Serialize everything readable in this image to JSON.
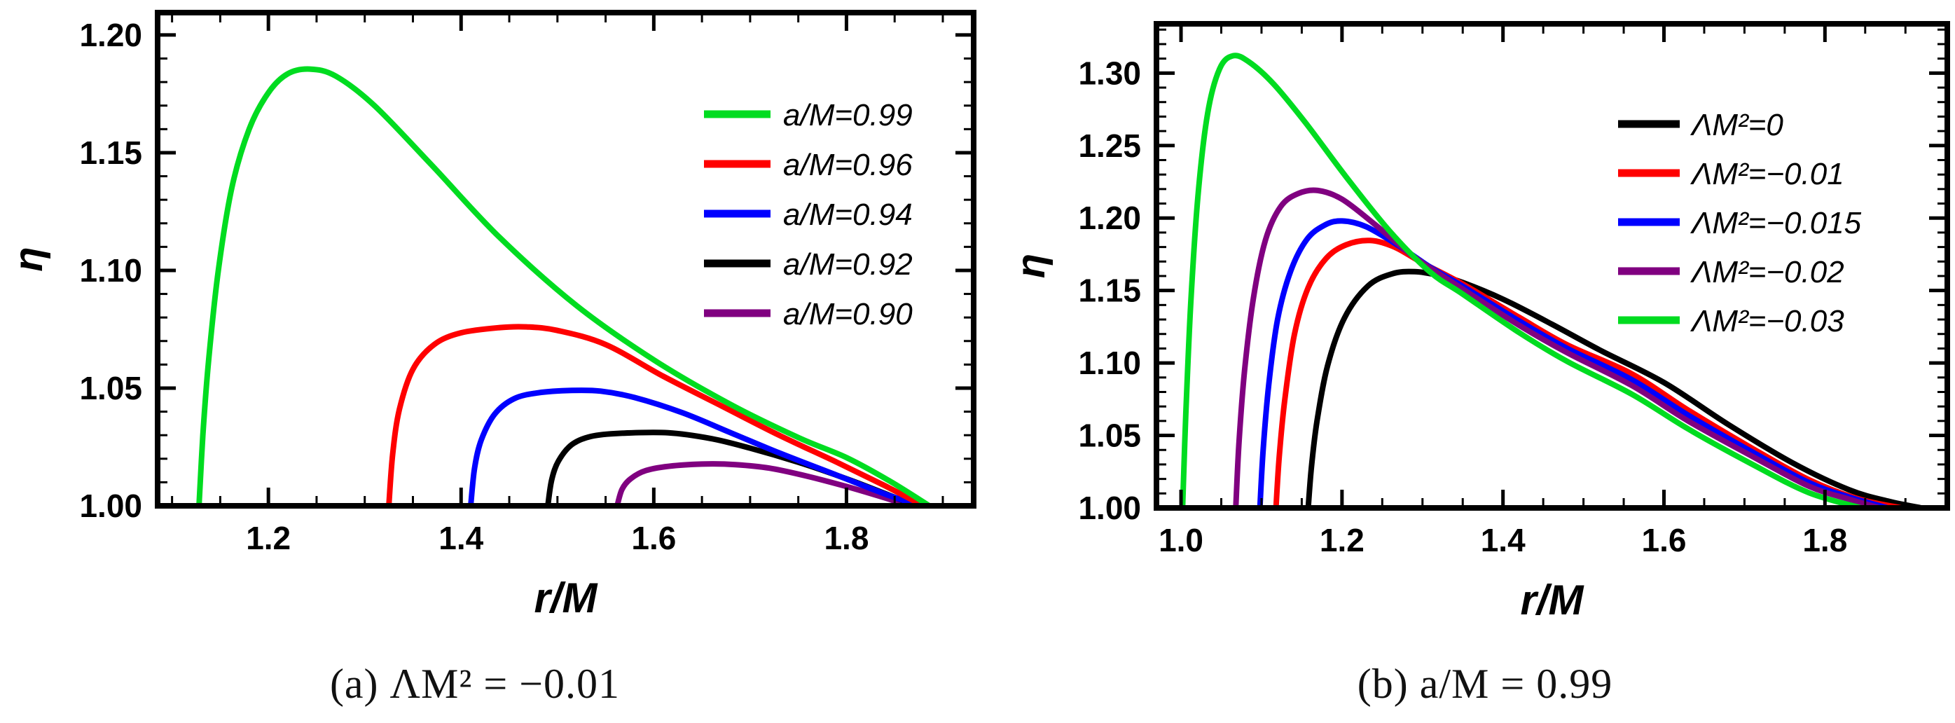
{
  "figure": {
    "background": "#ffffff",
    "accent_black": "#000000"
  },
  "chart_data": [
    {
      "type": "line",
      "panel": "a",
      "caption": "(a) ΛM² = −0.01",
      "xlabel": "r/M",
      "ylabel": "η",
      "xlim": [
        1.085,
        1.932
      ],
      "ylim": [
        1.0,
        1.2095
      ],
      "grid": false,
      "legend_position": "inside-right",
      "xticks": [
        {
          "v": 1.2,
          "label": "1.2"
        },
        {
          "v": 1.4,
          "label": "1.4"
        },
        {
          "v": 1.6,
          "label": "1.6"
        },
        {
          "v": 1.8,
          "label": "1.8"
        }
      ],
      "yticks": [
        {
          "v": 1.0,
          "label": "1.00"
        },
        {
          "v": 1.05,
          "label": "1.05"
        },
        {
          "v": 1.1,
          "label": "1.10"
        },
        {
          "v": 1.15,
          "label": "1.15"
        },
        {
          "v": 1.2,
          "label": "1.20"
        }
      ],
      "x_minor_step": 0.05,
      "y_minor_step": 0.01,
      "draw_order": [
        4,
        3,
        2,
        1,
        0
      ],
      "series": [
        {
          "name": "a/M=0.99",
          "color": "#00DC20",
          "peak": [
            1.24,
            1.185
          ],
          "points": [
            [
              1.128,
              1.0
            ],
            [
              1.132,
              1.03
            ],
            [
              1.138,
              1.062
            ],
            [
              1.148,
              1.1
            ],
            [
              1.162,
              1.135
            ],
            [
              1.18,
              1.16
            ],
            [
              1.2,
              1.1755
            ],
            [
              1.22,
              1.1835
            ],
            [
              1.243,
              1.1855
            ],
            [
              1.27,
              1.1825
            ],
            [
              1.31,
              1.17
            ],
            [
              1.37,
              1.1445
            ],
            [
              1.44,
              1.114
            ],
            [
              1.52,
              1.085
            ],
            [
              1.6,
              1.062
            ],
            [
              1.68,
              1.043
            ],
            [
              1.75,
              1.029
            ],
            [
              1.8,
              1.0205
            ],
            [
              1.845,
              1.0105
            ],
            [
              1.886,
              1.0
            ]
          ]
        },
        {
          "name": "a/M=0.96",
          "color": "#FF0000",
          "peak": [
            1.47,
            1.076
          ],
          "points": [
            [
              1.325,
              1.0
            ],
            [
              1.329,
              1.022
            ],
            [
              1.336,
              1.041
            ],
            [
              1.35,
              1.058
            ],
            [
              1.372,
              1.0685
            ],
            [
              1.4,
              1.0735
            ],
            [
              1.44,
              1.0757
            ],
            [
              1.468,
              1.076
            ],
            [
              1.5,
              1.0745
            ],
            [
              1.55,
              1.0685
            ],
            [
              1.61,
              1.055
            ],
            [
              1.67,
              1.0425
            ],
            [
              1.73,
              1.03
            ],
            [
              1.79,
              1.0185
            ],
            [
              1.84,
              1.0085
            ],
            [
              1.88,
              1.0
            ]
          ]
        },
        {
          "name": "a/M=0.94",
          "color": "#0000FF",
          "peak": [
            1.545,
            1.049
          ],
          "points": [
            [
              1.41,
              1.0
            ],
            [
              1.414,
              1.016
            ],
            [
              1.421,
              1.028
            ],
            [
              1.435,
              1.039
            ],
            [
              1.455,
              1.0455
            ],
            [
              1.48,
              1.048
            ],
            [
              1.515,
              1.049
            ],
            [
              1.545,
              1.0487
            ],
            [
              1.58,
              1.046
            ],
            [
              1.63,
              1.0395
            ],
            [
              1.68,
              1.031
            ],
            [
              1.73,
              1.0225
            ],
            [
              1.79,
              1.013
            ],
            [
              1.84,
              1.005
            ],
            [
              1.876,
              1.0
            ]
          ]
        },
        {
          "name": "a/M=0.92",
          "color": "#000000",
          "peak": [
            1.615,
            1.031
          ],
          "points": [
            [
              1.49,
              1.0
            ],
            [
              1.494,
              1.011
            ],
            [
              1.501,
              1.019
            ],
            [
              1.515,
              1.026
            ],
            [
              1.535,
              1.0295
            ],
            [
              1.565,
              1.0308
            ],
            [
              1.615,
              1.031
            ],
            [
              1.66,
              1.0285
            ],
            [
              1.7,
              1.0245
            ],
            [
              1.75,
              1.0185
            ],
            [
              1.8,
              1.0115
            ],
            [
              1.84,
              1.0052
            ],
            [
              1.872,
              1.0
            ]
          ]
        },
        {
          "name": "a/M=0.90",
          "color": "#800080",
          "peak": [
            1.67,
            1.018
          ],
          "points": [
            [
              1.562,
              1.0
            ],
            [
              1.567,
              1.007
            ],
            [
              1.576,
              1.0115
            ],
            [
              1.592,
              1.015
            ],
            [
              1.62,
              1.017
            ],
            [
              1.655,
              1.0178
            ],
            [
              1.685,
              1.0175
            ],
            [
              1.72,
              1.016
            ],
            [
              1.76,
              1.0125
            ],
            [
              1.8,
              1.0082
            ],
            [
              1.835,
              1.004
            ],
            [
              1.866,
              1.0
            ]
          ]
        }
      ]
    },
    {
      "type": "line",
      "panel": "b",
      "caption": "(b) a/M = 0.99",
      "xlabel": "r/M",
      "ylabel": "η",
      "xlim": [
        0.9695,
        1.952
      ],
      "ylim": [
        1.0,
        1.334
      ],
      "grid": false,
      "legend_position": "inside-right",
      "xticks": [
        {
          "v": 1.0,
          "label": "1.0"
        },
        {
          "v": 1.2,
          "label": "1.2"
        },
        {
          "v": 1.4,
          "label": "1.4"
        },
        {
          "v": 1.6,
          "label": "1.6"
        },
        {
          "v": 1.8,
          "label": "1.8"
        }
      ],
      "yticks": [
        {
          "v": 1.0,
          "label": "1.00"
        },
        {
          "v": 1.05,
          "label": "1.05"
        },
        {
          "v": 1.1,
          "label": "1.10"
        },
        {
          "v": 1.15,
          "label": "1.15"
        },
        {
          "v": 1.2,
          "label": "1.20"
        },
        {
          "v": 1.25,
          "label": "1.25"
        },
        {
          "v": 1.3,
          "label": "1.30"
        }
      ],
      "x_minor_step": 0.05,
      "y_minor_step": 0.01,
      "draw_order": [
        0,
        1,
        2,
        3,
        4
      ],
      "series": [
        {
          "name": "ΛM²=0",
          "color": "#000000",
          "peak": [
            1.29,
            1.163
          ],
          "points": [
            [
              1.158,
              1.0
            ],
            [
              1.162,
              1.028
            ],
            [
              1.169,
              1.06
            ],
            [
              1.182,
              1.098
            ],
            [
              1.203,
              1.131
            ],
            [
              1.232,
              1.153
            ],
            [
              1.262,
              1.1615
            ],
            [
              1.29,
              1.163
            ],
            [
              1.32,
              1.1605
            ],
            [
              1.35,
              1.1555
            ],
            [
              1.4,
              1.144
            ],
            [
              1.46,
              1.127
            ],
            [
              1.52,
              1.109
            ],
            [
              1.6,
              1.0865
            ],
            [
              1.68,
              1.0575
            ],
            [
              1.76,
              1.031
            ],
            [
              1.83,
              1.0125
            ],
            [
              1.88,
              1.0045
            ],
            [
              1.92,
              1.0
            ]
          ]
        },
        {
          "name": "ΛM²=−0.01",
          "color": "#FF0000",
          "peak": [
            1.235,
            1.185
          ],
          "points": [
            [
              1.118,
              1.0
            ],
            [
              1.122,
              1.035
            ],
            [
              1.129,
              1.075
            ],
            [
              1.141,
              1.12
            ],
            [
              1.158,
              1.152
            ],
            [
              1.18,
              1.172
            ],
            [
              1.205,
              1.1815
            ],
            [
              1.235,
              1.1845
            ],
            [
              1.265,
              1.18
            ],
            [
              1.3,
              1.169
            ],
            [
              1.35,
              1.1545
            ],
            [
              1.42,
              1.1315
            ],
            [
              1.48,
              1.1125
            ],
            [
              1.56,
              1.0925
            ],
            [
              1.63,
              1.0675
            ],
            [
              1.71,
              1.041
            ],
            [
              1.78,
              1.0195
            ],
            [
              1.84,
              1.0065
            ],
            [
              1.895,
              1.0
            ]
          ]
        },
        {
          "name": "ΛM²=−0.015",
          "color": "#0000FF",
          "peak": [
            1.2,
            1.198
          ],
          "points": [
            [
              1.098,
              1.0
            ],
            [
              1.102,
              1.04
            ],
            [
              1.109,
              1.085
            ],
            [
              1.12,
              1.13
            ],
            [
              1.136,
              1.163
            ],
            [
              1.156,
              1.185
            ],
            [
              1.178,
              1.195
            ],
            [
              1.2,
              1.198
            ],
            [
              1.23,
              1.194
            ],
            [
              1.27,
              1.181
            ],
            [
              1.31,
              1.166
            ],
            [
              1.35,
              1.153
            ],
            [
              1.42,
              1.129
            ],
            [
              1.48,
              1.11
            ],
            [
              1.56,
              1.0885
            ],
            [
              1.63,
              1.064
            ],
            [
              1.71,
              1.0385
            ],
            [
              1.78,
              1.0175
            ],
            [
              1.83,
              1.0075
            ],
            [
              1.878,
              1.0
            ]
          ]
        },
        {
          "name": "ΛM²=−0.02",
          "color": "#800080",
          "peak": [
            1.17,
            1.219
          ],
          "points": [
            [
              1.068,
              1.0
            ],
            [
              1.072,
              1.045
            ],
            [
              1.079,
              1.095
            ],
            [
              1.09,
              1.145
            ],
            [
              1.105,
              1.185
            ],
            [
              1.124,
              1.208
            ],
            [
              1.146,
              1.217
            ],
            [
              1.17,
              1.219
            ],
            [
              1.2,
              1.213
            ],
            [
              1.24,
              1.196
            ],
            [
              1.29,
              1.173
            ],
            [
              1.35,
              1.151
            ],
            [
              1.42,
              1.126
            ],
            [
              1.48,
              1.107
            ],
            [
              1.56,
              1.0845
            ],
            [
              1.63,
              1.06
            ],
            [
              1.71,
              1.0355
            ],
            [
              1.78,
              1.015
            ],
            [
              1.83,
              1.006
            ],
            [
              1.868,
              1.0
            ]
          ]
        },
        {
          "name": "ΛM²=−0.03",
          "color": "#00DC20",
          "peak": [
            1.065,
            1.312
          ],
          "points": [
            [
              1.002,
              1.0
            ],
            [
              1.006,
              1.065
            ],
            [
              1.012,
              1.14
            ],
            [
              1.021,
              1.215
            ],
            [
              1.033,
              1.272
            ],
            [
              1.048,
              1.303
            ],
            [
              1.065,
              1.312
            ],
            [
              1.085,
              1.3075
            ],
            [
              1.115,
              1.2925
            ],
            [
              1.155,
              1.2655
            ],
            [
              1.205,
              1.2285
            ],
            [
              1.26,
              1.1905
            ],
            [
              1.31,
              1.1625
            ],
            [
              1.35,
              1.1475
            ],
            [
              1.42,
              1.121
            ],
            [
              1.48,
              1.101
            ],
            [
              1.56,
              1.0785
            ],
            [
              1.63,
              1.0545
            ],
            [
              1.71,
              1.03
            ],
            [
              1.78,
              1.0105
            ],
            [
              1.845,
              1.0
            ]
          ]
        }
      ]
    }
  ]
}
